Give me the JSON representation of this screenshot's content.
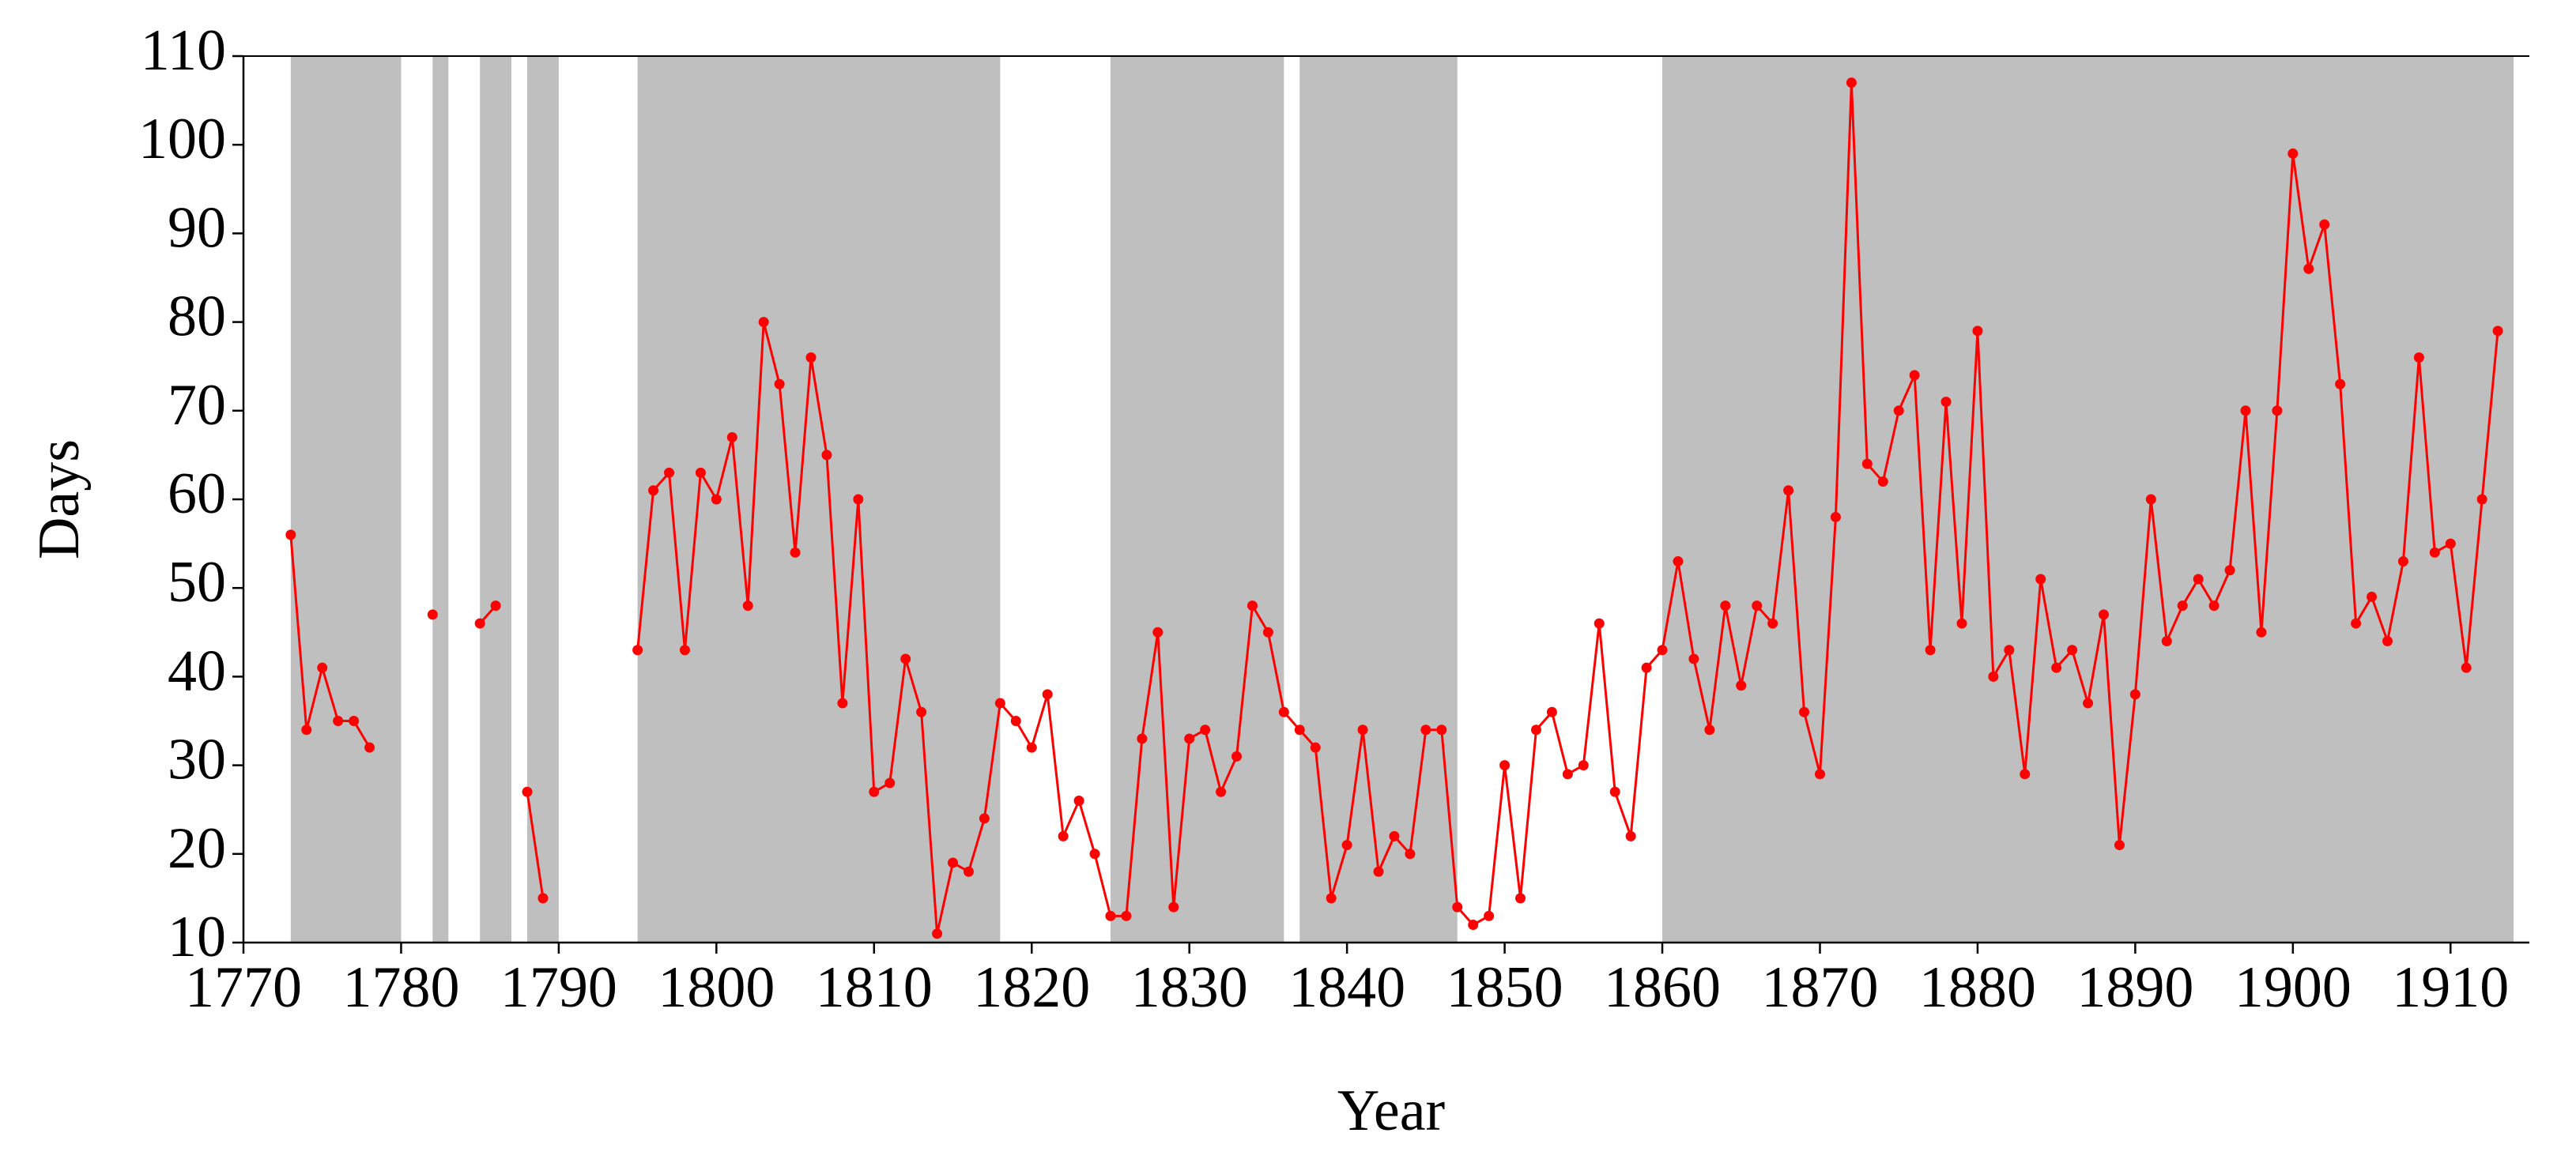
{
  "chart_data": {
    "type": "line",
    "x_label": "Year",
    "y_label": "Days",
    "xlim": [
      1770,
      1915
    ],
    "ylim": [
      10,
      110
    ],
    "xticks": [
      1770,
      1780,
      1790,
      1800,
      1810,
      1820,
      1830,
      1840,
      1850,
      1860,
      1870,
      1880,
      1890,
      1900,
      1910
    ],
    "yticks": [
      10,
      20,
      30,
      40,
      50,
      60,
      70,
      80,
      90,
      100,
      110
    ],
    "shaded_color": "#bfbfbf",
    "shaded": [
      [
        1773,
        1780
      ],
      [
        1782,
        1783
      ],
      [
        1785,
        1787
      ],
      [
        1788,
        1790
      ],
      [
        1795,
        1818
      ],
      [
        1825,
        1836
      ],
      [
        1837,
        1847
      ],
      [
        1860,
        1914
      ]
    ],
    "x": [
      1773,
      1774,
      1775,
      1776,
      1777,
      1778,
      1779,
      1780,
      1781,
      1782,
      1783,
      1784,
      1785,
      1786,
      1787,
      1788,
      1789,
      1790,
      1791,
      1792,
      1793,
      1794,
      1795,
      1796,
      1797,
      1798,
      1799,
      1800,
      1801,
      1802,
      1803,
      1804,
      1805,
      1806,
      1807,
      1808,
      1809,
      1810,
      1811,
      1812,
      1813,
      1814,
      1815,
      1816,
      1817,
      1818,
      1819,
      1820,
      1821,
      1822,
      1823,
      1824,
      1825,
      1826,
      1827,
      1828,
      1829,
      1830,
      1831,
      1832,
      1833,
      1834,
      1835,
      1836,
      1837,
      1838,
      1839,
      1840,
      1841,
      1842,
      1843,
      1844,
      1845,
      1846,
      1847,
      1848,
      1849,
      1850,
      1851,
      1852,
      1853,
      1854,
      1855,
      1856,
      1857,
      1858,
      1859,
      1860,
      1861,
      1862,
      1863,
      1864,
      1865,
      1866,
      1867,
      1868,
      1869,
      1870,
      1871,
      1872,
      1873,
      1874,
      1875,
      1876,
      1877,
      1878,
      1879,
      1880,
      1881,
      1882,
      1883,
      1884,
      1885,
      1886,
      1887,
      1888,
      1889,
      1890,
      1891,
      1892,
      1893,
      1894,
      1895,
      1896,
      1897,
      1898,
      1899,
      1900,
      1901,
      1902,
      1903,
      1904,
      1905,
      1906,
      1907,
      1908,
      1909,
      1910,
      1911,
      1912,
      1913
    ],
    "series": [
      {
        "color": "#ff0000",
        "values": [
          56,
          34,
          41,
          35,
          35,
          32,
          null,
          null,
          null,
          47,
          null,
          null,
          46,
          48,
          null,
          27,
          15,
          null,
          null,
          null,
          null,
          null,
          43,
          61,
          63,
          43,
          63,
          60,
          67,
          48,
          80,
          73,
          54,
          76,
          65,
          37,
          60,
          27,
          28,
          42,
          36,
          11,
          19,
          18,
          24,
          37,
          35,
          32,
          38,
          22,
          26,
          20,
          13,
          13,
          33,
          45,
          14,
          33,
          34,
          27,
          31,
          48,
          45,
          36,
          34,
          32,
          15,
          21,
          34,
          18,
          22,
          20,
          34,
          34,
          14,
          12,
          13,
          30,
          15,
          34,
          36,
          29,
          30,
          46,
          27,
          22,
          41,
          43,
          53,
          42,
          34,
          48,
          39,
          48,
          46,
          61,
          36,
          29,
          58,
          107,
          64,
          62,
          70,
          74,
          43,
          71,
          46,
          79,
          40,
          43,
          29,
          51,
          41,
          43,
          37,
          47,
          21,
          38,
          60,
          44,
          48,
          51,
          48,
          52,
          70,
          45,
          70,
          99,
          86,
          91,
          73,
          46,
          49,
          44,
          53,
          76,
          54,
          55,
          41,
          60,
          79
        ]
      }
    ]
  }
}
